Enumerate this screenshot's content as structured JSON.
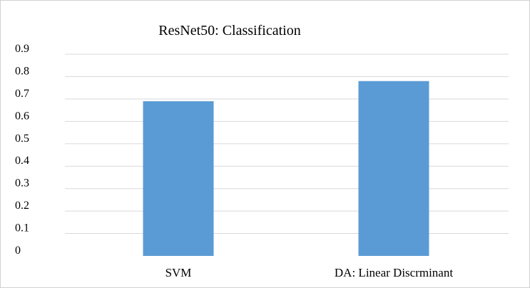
{
  "chart_data": {
    "type": "bar",
    "title": "ResNet50: Classification",
    "categories": [
      "SVM",
      "DA: Linear Discrminant"
    ],
    "values": [
      0.69,
      0.78
    ],
    "y_ticks": [
      "0",
      "0.1",
      "0.2",
      "0.3",
      "0.4",
      "0.5",
      "0.6",
      "0.7",
      "0.8",
      "0.9"
    ],
    "ylim": [
      0,
      0.9
    ],
    "grid": true,
    "bar_color": "#5b9bd5",
    "grid_color": "#d9d9d9"
  }
}
